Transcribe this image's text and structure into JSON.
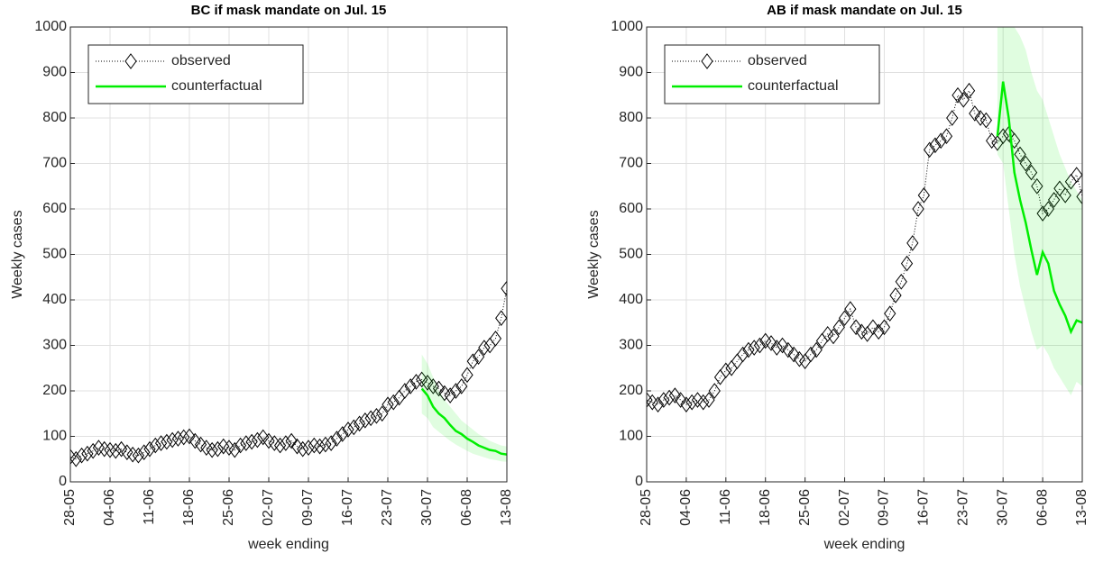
{
  "chart_data": [
    {
      "type": "line",
      "title": "BC if mask mandate on Jul. 15",
      "xlabel": "week ending",
      "ylabel": "Weekly cases",
      "categories": [
        "28-05",
        null,
        null,
        null,
        null,
        null,
        null,
        "04-06",
        null,
        null,
        null,
        null,
        null,
        null,
        "11-06",
        null,
        null,
        null,
        null,
        null,
        null,
        "18-06",
        null,
        null,
        null,
        null,
        null,
        null,
        "25-06",
        null,
        null,
        null,
        null,
        null,
        null,
        "02-07",
        null,
        null,
        null,
        null,
        null,
        null,
        "09-07",
        null,
        null,
        null,
        null,
        null,
        null,
        "16-07",
        null,
        null,
        null,
        null,
        null,
        null,
        "23-07",
        null,
        null,
        null,
        null,
        null,
        null,
        "30-07",
        null,
        null,
        null,
        null,
        null,
        null,
        "06-08",
        null,
        null,
        null,
        null,
        null,
        null,
        "13-08"
      ],
      "ylim": [
        0,
        1000
      ],
      "yticks": [
        0,
        100,
        200,
        300,
        400,
        500,
        600,
        700,
        800,
        900,
        1000
      ],
      "grid": true,
      "legend": "northwest",
      "series": [
        {
          "name": "observed",
          "color": "#000000",
          "marker": "diamond",
          "linestyle": "dotted",
          "values": [
            55,
            50,
            58,
            62,
            68,
            75,
            72,
            70,
            68,
            72,
            65,
            60,
            58,
            65,
            72,
            80,
            85,
            88,
            92,
            95,
            98,
            100,
            90,
            82,
            75,
            70,
            72,
            78,
            75,
            70,
            80,
            85,
            88,
            92,
            98,
            90,
            85,
            80,
            85,
            90,
            78,
            72,
            75,
            80,
            78,
            82,
            85,
            95,
            105,
            115,
            120,
            128,
            135,
            140,
            145,
            150,
            170,
            175,
            185,
            200,
            210,
            220,
            225,
            218,
            210,
            205,
            195,
            190,
            200,
            210,
            235,
            265,
            275,
            295,
            300,
            315,
            360,
            425
          ]
        },
        {
          "name": "counterfactual",
          "color": "#00ee00",
          "linestyle": "solid",
          "values": [
            null,
            null,
            null,
            null,
            null,
            null,
            null,
            null,
            null,
            null,
            null,
            null,
            null,
            null,
            null,
            null,
            null,
            null,
            null,
            null,
            null,
            null,
            null,
            null,
            null,
            null,
            null,
            null,
            null,
            null,
            null,
            null,
            null,
            null,
            null,
            null,
            null,
            null,
            null,
            null,
            null,
            null,
            null,
            null,
            null,
            null,
            null,
            null,
            null,
            null,
            null,
            null,
            null,
            null,
            null,
            null,
            null,
            null,
            null,
            null,
            null,
            null,
            205,
            190,
            165,
            150,
            140,
            125,
            112,
            105,
            95,
            88,
            80,
            75,
            70,
            68,
            62,
            60
          ],
          "upper": [
            null,
            null,
            null,
            null,
            null,
            null,
            null,
            null,
            null,
            null,
            null,
            null,
            null,
            null,
            null,
            null,
            null,
            null,
            null,
            null,
            null,
            null,
            null,
            null,
            null,
            null,
            null,
            null,
            null,
            null,
            null,
            null,
            null,
            null,
            null,
            null,
            null,
            null,
            null,
            null,
            null,
            null,
            null,
            null,
            null,
            null,
            null,
            null,
            null,
            null,
            null,
            null,
            null,
            null,
            null,
            null,
            null,
            null,
            null,
            null,
            null,
            null,
            280,
            260,
            230,
            200,
            180,
            165,
            150,
            135,
            125,
            115,
            105,
            98,
            90,
            85,
            80,
            78
          ],
          "lower": [
            null,
            null,
            null,
            null,
            null,
            null,
            null,
            null,
            null,
            null,
            null,
            null,
            null,
            null,
            null,
            null,
            null,
            null,
            null,
            null,
            null,
            null,
            null,
            null,
            null,
            null,
            null,
            null,
            null,
            null,
            null,
            null,
            null,
            null,
            null,
            null,
            null,
            null,
            null,
            null,
            null,
            null,
            null,
            null,
            null,
            null,
            null,
            null,
            null,
            null,
            null,
            null,
            null,
            null,
            null,
            null,
            null,
            null,
            null,
            null,
            null,
            null,
            150,
            140,
            120,
            110,
            100,
            90,
            82,
            75,
            68,
            62,
            58,
            54,
            50,
            48,
            45,
            44
          ]
        }
      ]
    },
    {
      "type": "line",
      "title": "AB if mask mandate on Jul. 15",
      "xlabel": "week ending",
      "ylabel": "Weekly cases",
      "categories": [
        "28-05",
        null,
        null,
        null,
        null,
        null,
        null,
        "04-06",
        null,
        null,
        null,
        null,
        null,
        null,
        "11-06",
        null,
        null,
        null,
        null,
        null,
        null,
        "18-06",
        null,
        null,
        null,
        null,
        null,
        null,
        "25-06",
        null,
        null,
        null,
        null,
        null,
        null,
        "02-07",
        null,
        null,
        null,
        null,
        null,
        null,
        "09-07",
        null,
        null,
        null,
        null,
        null,
        null,
        "16-07",
        null,
        null,
        null,
        null,
        null,
        null,
        "23-07",
        null,
        null,
        null,
        null,
        null,
        null,
        "30-07",
        null,
        null,
        null,
        null,
        null,
        null,
        "06-08",
        null,
        null,
        null,
        null,
        null,
        null,
        "13-08"
      ],
      "ylim": [
        0,
        1000
      ],
      "yticks": [
        0,
        100,
        200,
        300,
        400,
        500,
        600,
        700,
        800,
        900,
        1000
      ],
      "grid": true,
      "legend": "northwest",
      "series": [
        {
          "name": "observed",
          "color": "#000000",
          "marker": "diamond",
          "linestyle": "dotted",
          "values": [
            180,
            175,
            170,
            180,
            185,
            190,
            180,
            170,
            175,
            180,
            175,
            180,
            200,
            230,
            245,
            250,
            265,
            280,
            290,
            295,
            300,
            310,
            305,
            295,
            300,
            290,
            280,
            270,
            265,
            280,
            290,
            310,
            325,
            320,
            340,
            360,
            380,
            340,
            330,
            325,
            340,
            330,
            340,
            370,
            410,
            440,
            480,
            525,
            600,
            630,
            730,
            740,
            750,
            760,
            800,
            850,
            840,
            860,
            810,
            800,
            795,
            750,
            745,
            760,
            765,
            750,
            720,
            700,
            680,
            650,
            590,
            600,
            620,
            645,
            630,
            660,
            675,
            627
          ]
        },
        {
          "name": "counterfactual",
          "color": "#00ee00",
          "linestyle": "solid",
          "values": [
            null,
            null,
            null,
            null,
            null,
            null,
            null,
            null,
            null,
            null,
            null,
            null,
            null,
            null,
            null,
            null,
            null,
            null,
            null,
            null,
            null,
            null,
            null,
            null,
            null,
            null,
            null,
            null,
            null,
            null,
            null,
            null,
            null,
            null,
            null,
            null,
            null,
            null,
            null,
            null,
            null,
            null,
            null,
            null,
            null,
            null,
            null,
            null,
            null,
            null,
            null,
            null,
            null,
            null,
            null,
            null,
            null,
            null,
            null,
            null,
            null,
            null,
            760,
            880,
            800,
            680,
            620,
            570,
            510,
            455,
            505,
            480,
            420,
            390,
            365,
            330,
            355,
            350
          ],
          "upper": [
            null,
            null,
            null,
            null,
            null,
            null,
            null,
            null,
            null,
            null,
            null,
            null,
            null,
            null,
            null,
            null,
            null,
            null,
            null,
            null,
            null,
            null,
            null,
            null,
            null,
            null,
            null,
            null,
            null,
            null,
            null,
            null,
            null,
            null,
            null,
            null,
            null,
            null,
            null,
            null,
            null,
            null,
            null,
            null,
            null,
            null,
            null,
            null,
            null,
            null,
            null,
            null,
            null,
            null,
            null,
            null,
            null,
            null,
            null,
            null,
            null,
            null,
            1000,
            1000,
            1000,
            1000,
            980,
            950,
            900,
            860,
            840,
            800,
            760,
            720,
            690,
            660,
            640,
            620
          ],
          "lower": [
            null,
            null,
            null,
            null,
            null,
            null,
            null,
            null,
            null,
            null,
            null,
            null,
            null,
            null,
            null,
            null,
            null,
            null,
            null,
            null,
            null,
            null,
            null,
            null,
            null,
            null,
            null,
            null,
            null,
            null,
            null,
            null,
            null,
            null,
            null,
            null,
            null,
            null,
            null,
            null,
            null,
            null,
            null,
            null,
            null,
            null,
            null,
            null,
            null,
            null,
            null,
            null,
            null,
            null,
            null,
            null,
            null,
            null,
            null,
            null,
            null,
            null,
            720,
            700,
            600,
            500,
            430,
            380,
            330,
            290,
            300,
            280,
            250,
            230,
            210,
            190,
            220,
            210
          ]
        }
      ]
    }
  ]
}
